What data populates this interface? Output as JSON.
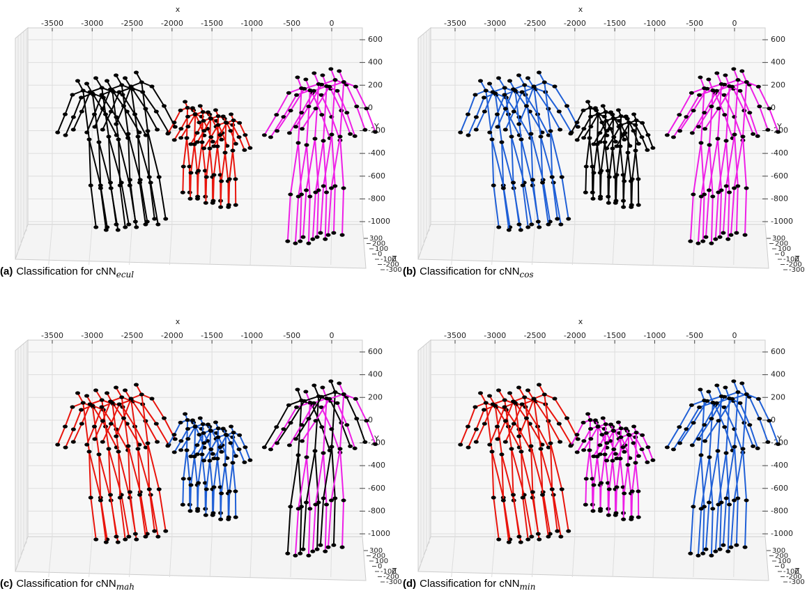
{
  "panels": [
    {
      "label": "(a)",
      "caption": "Classification for cNN",
      "subscript": "ecul",
      "x_axis_label": "x",
      "y_axis_label": "Y",
      "z_axis_label": "Z",
      "xticks": [
        -3500,
        -3000,
        -2500,
        -2000,
        -1500,
        -1000,
        -500,
        0
      ],
      "yticks": [
        600,
        400,
        200,
        0,
        -200,
        -400,
        -600,
        -800,
        -1000
      ],
      "zticks": [
        300,
        200,
        100,
        0,
        -100,
        -200,
        -300
      ],
      "cluster_colors": [
        [
          "#000000"
        ],
        [
          "#e8140c"
        ],
        [
          "#ee1ee6"
        ]
      ]
    },
    {
      "label": "(b)",
      "caption": "Classification for cNN",
      "subscript": "cos",
      "x_axis_label": "x",
      "y_axis_label": "Y",
      "z_axis_label": "Z",
      "xticks": [
        -3500,
        -3000,
        -2500,
        -2000,
        -1500,
        -1000,
        -500,
        0
      ],
      "yticks": [
        600,
        400,
        200,
        0,
        -200,
        -400,
        -600,
        -800,
        -1000
      ],
      "zticks": [
        300,
        200,
        100,
        0,
        -100,
        -200,
        -300
      ],
      "cluster_colors": [
        [
          "#1f5fd6"
        ],
        [
          "#000000"
        ],
        [
          "#ee1ee6"
        ]
      ]
    },
    {
      "label": "(c)",
      "caption": "Classification for cNN",
      "subscript": "mah",
      "x_axis_label": "x",
      "y_axis_label": "Y",
      "z_axis_label": "Z",
      "xticks": [
        -3500,
        -3000,
        -2500,
        -2000,
        -1500,
        -1000,
        -500,
        0
      ],
      "yticks": [
        600,
        400,
        200,
        0,
        -200,
        -400,
        -600,
        -800,
        -1000
      ],
      "zticks": [
        300,
        200,
        100,
        0,
        -100,
        -200,
        -300
      ],
      "cluster_colors": [
        [
          "#e8140c"
        ],
        [
          "#1f5fd6"
        ],
        [
          "#000000",
          "#ee1ee6"
        ]
      ]
    },
    {
      "label": "(d)",
      "caption": "Classification for cNN",
      "subscript": "min",
      "x_axis_label": "x",
      "y_axis_label": "Y",
      "z_axis_label": "Z",
      "xticks": [
        -3500,
        -3000,
        -2500,
        -2000,
        -1500,
        -1000,
        -500,
        0
      ],
      "yticks": [
        600,
        400,
        200,
        0,
        -200,
        -400,
        -600,
        -800,
        -1000
      ],
      "zticks": [
        300,
        200,
        100,
        0,
        -100,
        -200,
        -300
      ],
      "cluster_colors": [
        [
          "#e8140c"
        ],
        [
          "#ee1ee6"
        ],
        [
          "#1f5fd6"
        ]
      ]
    }
  ]
}
